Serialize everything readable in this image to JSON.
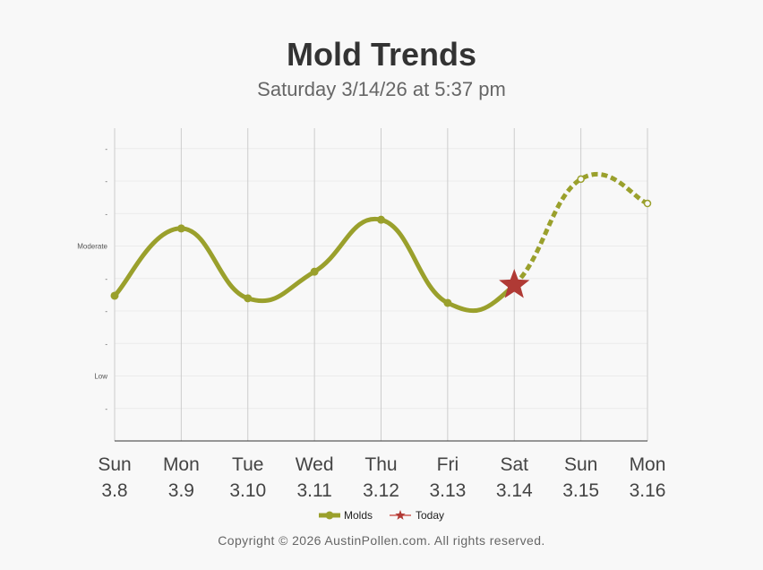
{
  "chart_data": {
    "type": "line",
    "title": "Mold Trends",
    "subtitle": "Saturday 3/14/26 at 5:37 pm",
    "categories": [
      [
        "Sun",
        "3.8"
      ],
      [
        "Mon",
        "3.9"
      ],
      [
        "Tue",
        "3.10"
      ],
      [
        "Wed",
        "3.11"
      ],
      [
        "Thu",
        "3.12"
      ],
      [
        "Fri",
        "3.13"
      ],
      [
        "Sat",
        "3.14"
      ],
      [
        "Sun",
        "3.15"
      ],
      [
        "Mon",
        "3.16"
      ]
    ],
    "y_ticks": [
      {
        "v": 1,
        "label": "-"
      },
      {
        "v": 2,
        "label": "Low"
      },
      {
        "v": 3,
        "label": "-"
      },
      {
        "v": 4,
        "label": "-"
      },
      {
        "v": 5,
        "label": "-"
      },
      {
        "v": 6,
        "label": "Moderate"
      },
      {
        "v": 7,
        "label": "-"
      },
      {
        "v": 8,
        "label": "-"
      },
      {
        "v": 9,
        "label": "-"
      }
    ],
    "ylim": [
      0,
      9.6
    ],
    "grid": true,
    "series": [
      {
        "name": "Molds",
        "values": [
          4.47,
          6.54,
          4.39,
          5.21,
          6.81,
          4.25,
          4.8,
          8.06,
          7.31
        ],
        "forecast_from_index": 6,
        "color": "#9aa02c"
      }
    ],
    "today": {
      "name": "Today",
      "index": 6,
      "color": "#b03a35"
    },
    "legend": "bottom"
  },
  "footer": "Copyright © 2026 AustinPollen.com.  All rights reserved."
}
